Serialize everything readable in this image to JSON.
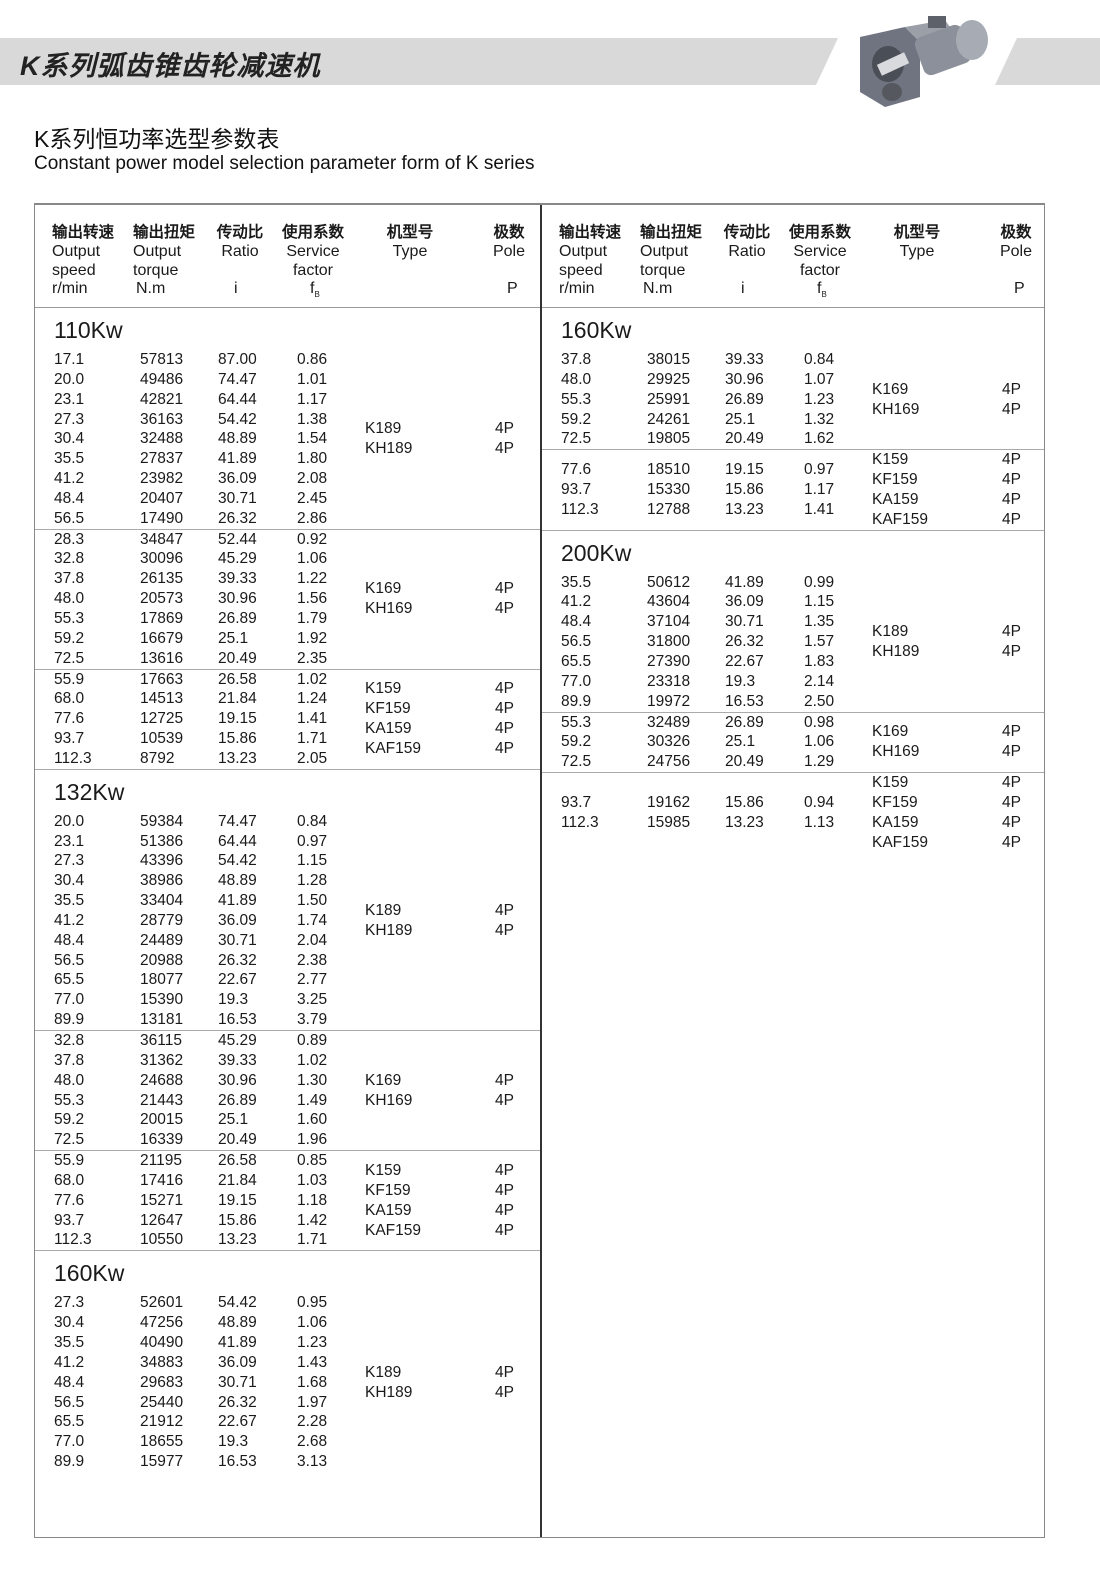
{
  "banner": {
    "title": "K系列弧齿锥齿轮减速机",
    "image": "gear-reducer-photo"
  },
  "heading": {
    "zh": "K系列恒功率选型参数表",
    "en": "Constant power model selection parameter form of K series"
  },
  "table": {
    "headers": [
      {
        "zh": "输出转速",
        "en1": "Output",
        "en2": "speed",
        "unit": "r/min"
      },
      {
        "zh": "输出扭矩",
        "en1": "Output",
        "en2": "torque",
        "unit": "N.m"
      },
      {
        "zh": "传动比",
        "en1": "Ratio",
        "en2": "",
        "unit": "i"
      },
      {
        "zh": "使用系数",
        "en1": "Service",
        "en2": "factor",
        "unit": "f",
        "unit_sub": "B"
      },
      {
        "zh": "机型号",
        "en1": "Type",
        "en2": "",
        "unit": ""
      },
      {
        "zh": "极数",
        "en1": "Pole",
        "en2": "",
        "unit": "P"
      }
    ],
    "panels": [
      {
        "sections": [
          {
            "title": "110Kw",
            "groups": [
              {
                "rows": [
                  [
                    "17.1",
                    "57813",
                    "87.00",
                    "0.86"
                  ],
                  [
                    "20.0",
                    "49486",
                    "74.47",
                    "1.01"
                  ],
                  [
                    "23.1",
                    "42821",
                    "64.44",
                    "1.17"
                  ],
                  [
                    "27.3",
                    "36163",
                    "54.42",
                    "1.38"
                  ],
                  [
                    "30.4",
                    "32488",
                    "48.89",
                    "1.54"
                  ],
                  [
                    "35.5",
                    "27837",
                    "41.89",
                    "1.80"
                  ],
                  [
                    "41.2",
                    "23982",
                    "36.09",
                    "2.08"
                  ],
                  [
                    "48.4",
                    "20407",
                    "30.71",
                    "2.45"
                  ],
                  [
                    "56.5",
                    "17490",
                    "26.32",
                    "2.86"
                  ]
                ],
                "types": [
                  [
                    "K189",
                    "4P"
                  ],
                  [
                    "KH189",
                    "4P"
                  ]
                ]
              },
              {
                "rows": [
                  [
                    "28.3",
                    "34847",
                    "52.44",
                    "0.92"
                  ],
                  [
                    "32.8",
                    "30096",
                    "45.29",
                    "1.06"
                  ],
                  [
                    "37.8",
                    "26135",
                    "39.33",
                    "1.22"
                  ],
                  [
                    "48.0",
                    "20573",
                    "30.96",
                    "1.56"
                  ],
                  [
                    "55.3",
                    "17869",
                    "26.89",
                    "1.79"
                  ],
                  [
                    "59.2",
                    "16679",
                    "25.1",
                    "1.92"
                  ],
                  [
                    "72.5",
                    "13616",
                    "20.49",
                    "2.35"
                  ]
                ],
                "types": [
                  [
                    "K169",
                    "4P"
                  ],
                  [
                    "KH169",
                    "4P"
                  ]
                ]
              },
              {
                "rows": [
                  [
                    "55.9",
                    "17663",
                    "26.58",
                    "1.02"
                  ],
                  [
                    "68.0",
                    "14513",
                    "21.84",
                    "1.24"
                  ],
                  [
                    "77.6",
                    "12725",
                    "19.15",
                    "1.41"
                  ],
                  [
                    "93.7",
                    "10539",
                    "15.86",
                    "1.71"
                  ],
                  [
                    "112.3",
                    "8792",
                    "13.23",
                    "2.05"
                  ]
                ],
                "types": [
                  [
                    "K159",
                    "4P"
                  ],
                  [
                    "KF159",
                    "4P"
                  ],
                  [
                    "KA159",
                    "4P"
                  ],
                  [
                    "KAF159",
                    "4P"
                  ]
                ]
              }
            ]
          },
          {
            "title": "132Kw",
            "groups": [
              {
                "rows": [
                  [
                    "20.0",
                    "59384",
                    "74.47",
                    "0.84"
                  ],
                  [
                    "23.1",
                    "51386",
                    "64.44",
                    "0.97"
                  ],
                  [
                    "27.3",
                    "43396",
                    "54.42",
                    "1.15"
                  ],
                  [
                    "30.4",
                    "38986",
                    "48.89",
                    "1.28"
                  ],
                  [
                    "35.5",
                    "33404",
                    "41.89",
                    "1.50"
                  ],
                  [
                    "41.2",
                    "28779",
                    "36.09",
                    "1.74"
                  ],
                  [
                    "48.4",
                    "24489",
                    "30.71",
                    "2.04"
                  ],
                  [
                    "56.5",
                    "20988",
                    "26.32",
                    "2.38"
                  ],
                  [
                    "65.5",
                    "18077",
                    "22.67",
                    "2.77"
                  ],
                  [
                    "77.0",
                    "15390",
                    "19.3",
                    "3.25"
                  ],
                  [
                    "89.9",
                    "13181",
                    "16.53",
                    "3.79"
                  ]
                ],
                "types": [
                  [
                    "K189",
                    "4P"
                  ],
                  [
                    "KH189",
                    "4P"
                  ]
                ]
              },
              {
                "rows": [
                  [
                    "32.8",
                    "36115",
                    "45.29",
                    "0.89"
                  ],
                  [
                    "37.8",
                    "31362",
                    "39.33",
                    "1.02"
                  ],
                  [
                    "48.0",
                    "24688",
                    "30.96",
                    "1.30"
                  ],
                  [
                    "55.3",
                    "21443",
                    "26.89",
                    "1.49"
                  ],
                  [
                    "59.2",
                    "20015",
                    "25.1",
                    "1.60"
                  ],
                  [
                    "72.5",
                    "16339",
                    "20.49",
                    "1.96"
                  ]
                ],
                "types": [
                  [
                    "K169",
                    "4P"
                  ],
                  [
                    "KH169",
                    "4P"
                  ]
                ]
              },
              {
                "rows": [
                  [
                    "55.9",
                    "21195",
                    "26.58",
                    "0.85"
                  ],
                  [
                    "68.0",
                    "17416",
                    "21.84",
                    "1.03"
                  ],
                  [
                    "77.6",
                    "15271",
                    "19.15",
                    "1.18"
                  ],
                  [
                    "93.7",
                    "12647",
                    "15.86",
                    "1.42"
                  ],
                  [
                    "112.3",
                    "10550",
                    "13.23",
                    "1.71"
                  ]
                ],
                "types": [
                  [
                    "K159",
                    "4P"
                  ],
                  [
                    "KF159",
                    "4P"
                  ],
                  [
                    "KA159",
                    "4P"
                  ],
                  [
                    "KAF159",
                    "4P"
                  ]
                ]
              }
            ]
          },
          {
            "title": "160Kw",
            "groups": [
              {
                "rows": [
                  [
                    "27.3",
                    "52601",
                    "54.42",
                    "0.95"
                  ],
                  [
                    "30.4",
                    "47256",
                    "48.89",
                    "1.06"
                  ],
                  [
                    "35.5",
                    "40490",
                    "41.89",
                    "1.23"
                  ],
                  [
                    "41.2",
                    "34883",
                    "36.09",
                    "1.43"
                  ],
                  [
                    "48.4",
                    "29683",
                    "30.71",
                    "1.68"
                  ],
                  [
                    "56.5",
                    "25440",
                    "26.32",
                    "1.97"
                  ],
                  [
                    "65.5",
                    "21912",
                    "22.67",
                    "2.28"
                  ],
                  [
                    "77.0",
                    "18655",
                    "19.3",
                    "2.68"
                  ],
                  [
                    "89.9",
                    "15977",
                    "16.53",
                    "3.13"
                  ]
                ],
                "types": [
                  [
                    "K189",
                    "4P"
                  ],
                  [
                    "KH189",
                    "4P"
                  ]
                ]
              }
            ]
          }
        ]
      },
      {
        "sections": [
          {
            "title": "160Kw",
            "groups": [
              {
                "rows": [
                  [
                    "37.8",
                    "38015",
                    "39.33",
                    "0.84"
                  ],
                  [
                    "48.0",
                    "29925",
                    "30.96",
                    "1.07"
                  ],
                  [
                    "55.3",
                    "25991",
                    "26.89",
                    "1.23"
                  ],
                  [
                    "59.2",
                    "24261",
                    "25.1",
                    "1.32"
                  ],
                  [
                    "72.5",
                    "19805",
                    "20.49",
                    "1.62"
                  ]
                ],
                "types": [
                  [
                    "K169",
                    "4P"
                  ],
                  [
                    "KH169",
                    "4P"
                  ]
                ]
              },
              {
                "rows": [
                  [
                    "77.6",
                    "18510",
                    "19.15",
                    "0.97"
                  ],
                  [
                    "93.7",
                    "15330",
                    "15.86",
                    "1.17"
                  ],
                  [
                    "112.3",
                    "12788",
                    "13.23",
                    "1.41"
                  ]
                ],
                "types": [
                  [
                    "K159",
                    "4P"
                  ],
                  [
                    "KF159",
                    "4P"
                  ],
                  [
                    "KA159",
                    "4P"
                  ],
                  [
                    "KAF159",
                    "4P"
                  ]
                ]
              }
            ]
          },
          {
            "title": "200Kw",
            "groups": [
              {
                "rows": [
                  [
                    "35.5",
                    "50612",
                    "41.89",
                    "0.99"
                  ],
                  [
                    "41.2",
                    "43604",
                    "36.09",
                    "1.15"
                  ],
                  [
                    "48.4",
                    "37104",
                    "30.71",
                    "1.35"
                  ],
                  [
                    "56.5",
                    "31800",
                    "26.32",
                    "1.57"
                  ],
                  [
                    "65.5",
                    "27390",
                    "22.67",
                    "1.83"
                  ],
                  [
                    "77.0",
                    "23318",
                    "19.3",
                    "2.14"
                  ],
                  [
                    "89.9",
                    "19972",
                    "16.53",
                    "2.50"
                  ]
                ],
                "types": [
                  [
                    "K189",
                    "4P"
                  ],
                  [
                    "KH189",
                    "4P"
                  ]
                ]
              },
              {
                "rows": [
                  [
                    "55.3",
                    "32489",
                    "26.89",
                    "0.98"
                  ],
                  [
                    "59.2",
                    "30326",
                    "25.1",
                    "1.06"
                  ],
                  [
                    "72.5",
                    "24756",
                    "20.49",
                    "1.29"
                  ]
                ],
                "types": [
                  [
                    "K169",
                    "4P"
                  ],
                  [
                    "KH169",
                    "4P"
                  ]
                ]
              },
              {
                "rows": [
                  [
                    "93.7",
                    "19162",
                    "15.86",
                    "0.94"
                  ],
                  [
                    "112.3",
                    "15985",
                    "13.23",
                    "1.13"
                  ]
                ],
                "types": [
                  [
                    "K159",
                    "4P"
                  ],
                  [
                    "KF159",
                    "4P"
                  ],
                  [
                    "KA159",
                    "4P"
                  ],
                  [
                    "KAF159",
                    "4P"
                  ]
                ]
              }
            ]
          }
        ]
      }
    ]
  }
}
